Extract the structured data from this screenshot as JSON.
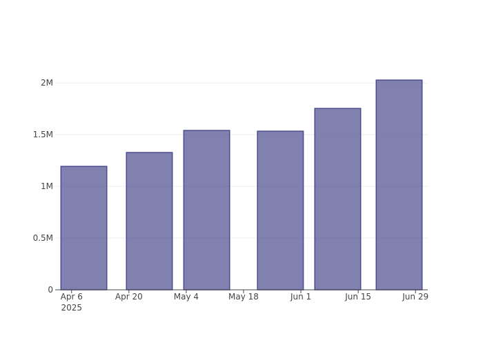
{
  "chart_data": {
    "type": "bar",
    "x": [
      "2025-04-09",
      "2025-04-25",
      "2025-05-09",
      "2025-05-27",
      "2025-06-10",
      "2025-06-25"
    ],
    "values": [
      1193000,
      1327000,
      1540000,
      1533000,
      1753000,
      2027000
    ],
    "color": "#4b4b8f",
    "xlim": [
      "2025-04-02",
      "2025-07-02"
    ],
    "xticks": [
      {
        "value": "2025-04-06",
        "label": "Apr 6\n2025"
      },
      {
        "value": "2025-04-20",
        "label": "Apr 20"
      },
      {
        "value": "2025-05-04",
        "label": "May 4"
      },
      {
        "value": "2025-05-18",
        "label": "May 18"
      },
      {
        "value": "2025-06-01",
        "label": "Jun 1"
      },
      {
        "value": "2025-06-15",
        "label": "Jun 15"
      },
      {
        "value": "2025-06-29",
        "label": "Jun 29"
      }
    ],
    "ylim": [
      0,
      2134000
    ],
    "yticks": [
      0,
      {
        "value": 500000,
        "label": "0.5M"
      },
      {
        "value": 1000000,
        "label": "1M"
      },
      {
        "value": 1500000,
        "label": "1.5M"
      },
      {
        "value": 2000000,
        "label": "2M"
      }
    ],
    "grid": true
  }
}
